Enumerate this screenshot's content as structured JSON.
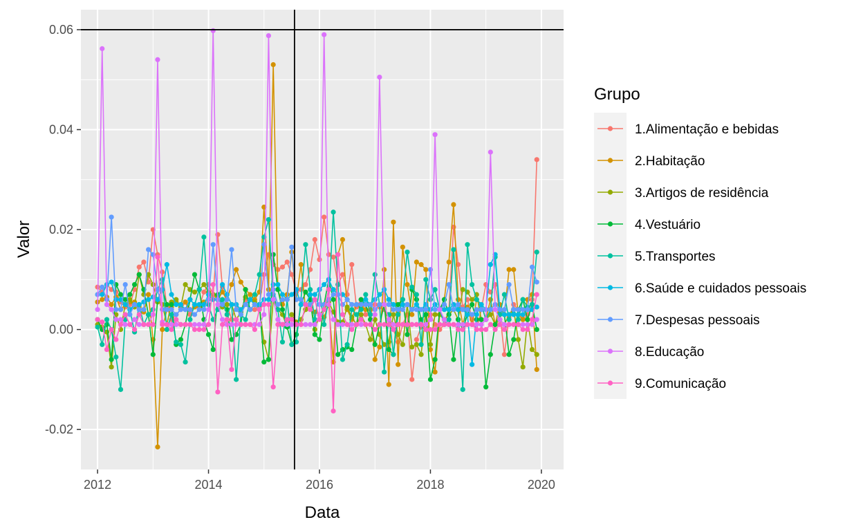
{
  "chart_data": {
    "type": "line",
    "xlabel": "Data",
    "ylabel": "Valor",
    "xlim": [
      2011.7,
      2020.4
    ],
    "ylim": [
      -0.028,
      0.064
    ],
    "x_ticks": [
      2012,
      2014,
      2016,
      2018,
      2020
    ],
    "x_tick_labels": [
      "2012",
      "2014",
      "2016",
      "2018",
      "2020"
    ],
    "y_ticks": [
      -0.02,
      0.0,
      0.02,
      0.04,
      0.06
    ],
    "y_tick_labels": [
      "-0.02",
      "0.00",
      "0.02",
      "0.04",
      "0.06"
    ],
    "grid": true,
    "reference_lines": {
      "hline_y": 0.06,
      "vline_x": 2015.55
    },
    "legend": {
      "title": "Grupo",
      "position": "right"
    },
    "x": [
      2012.0,
      2012.083,
      2012.167,
      2012.25,
      2012.333,
      2012.417,
      2012.5,
      2012.583,
      2012.667,
      2012.75,
      2012.833,
      2012.917,
      2013.0,
      2013.083,
      2013.167,
      2013.25,
      2013.333,
      2013.417,
      2013.5,
      2013.583,
      2013.667,
      2013.75,
      2013.833,
      2013.917,
      2014.0,
      2014.083,
      2014.167,
      2014.25,
      2014.333,
      2014.417,
      2014.5,
      2014.583,
      2014.667,
      2014.75,
      2014.833,
      2014.917,
      2015.0,
      2015.083,
      2015.167,
      2015.25,
      2015.333,
      2015.417,
      2015.5,
      2015.583,
      2015.667,
      2015.75,
      2015.833,
      2015.917,
      2016.0,
      2016.083,
      2016.167,
      2016.25,
      2016.333,
      2016.417,
      2016.5,
      2016.583,
      2016.667,
      2016.75,
      2016.833,
      2016.917,
      2017.0,
      2017.083,
      2017.167,
      2017.25,
      2017.333,
      2017.417,
      2017.5,
      2017.583,
      2017.667,
      2017.75,
      2017.833,
      2017.917,
      2018.0,
      2018.083,
      2018.167,
      2018.25,
      2018.333,
      2018.417,
      2018.5,
      2018.583,
      2018.667,
      2018.75,
      2018.833,
      2018.917,
      2019.0,
      2019.083,
      2019.167,
      2019.25,
      2019.333,
      2019.417,
      2019.5,
      2019.583,
      2019.667,
      2019.75,
      2019.833,
      2019.917
    ],
    "series": [
      {
        "name": "1.Alimentação e bebidas",
        "color": "#F8766D",
        "values": [
          0.0085,
          0.0075,
          0.009,
          0.008,
          0.0075,
          0.0055,
          0.0045,
          0.005,
          0.008,
          0.0125,
          0.0135,
          0.0095,
          0.02,
          0.015,
          0.0115,
          0.0045,
          0.002,
          0.003,
          0.004,
          0.0055,
          0.003,
          0.005,
          0.0045,
          0.0075,
          0.009,
          0.007,
          0.019,
          0.0085,
          0.005,
          0.002,
          0.005,
          0.003,
          0.006,
          0.004,
          0.004,
          0.005,
          0.011,
          0.015,
          0.013,
          0.012,
          0.0125,
          0.0135,
          0.011,
          0.0075,
          0.008,
          0.009,
          0.012,
          0.018,
          0.014,
          0.0225,
          0.015,
          0.0145,
          0.009,
          0.011,
          0.007,
          0.013,
          0.0045,
          0.006,
          0.003,
          0.003,
          0.005,
          0.0045,
          0.004,
          0.003,
          0.0,
          -0.0025,
          0.001,
          0.003,
          -0.01,
          -0.002,
          0.0005,
          0.0,
          0.003,
          0.001,
          0.0,
          0.001,
          0.004,
          0.0205,
          0.013,
          0.0045,
          0.006,
          0.002,
          0.0,
          0.004,
          0.009,
          0.0075,
          0.009,
          0.0035,
          -0.005,
          0.0025,
          0.005,
          0.004,
          0.002,
          0.003,
          0.006,
          0.034
        ]
      },
      {
        "name": "2.Habitação",
        "color": "#D39200",
        "values": [
          0.0055,
          0.006,
          0.0065,
          0.005,
          0.0065,
          0.004,
          0.005,
          0.0055,
          0.0055,
          0.0045,
          0.0035,
          0.007,
          -0.002,
          -0.0235,
          0.0,
          0.004,
          0.0045,
          0.0055,
          0.005,
          0.0055,
          0.004,
          0.0045,
          0.0045,
          0.0055,
          0.006,
          0.007,
          0.006,
          0.0075,
          0.006,
          0.009,
          0.012,
          0.0095,
          0.008,
          0.007,
          0.006,
          0.0075,
          0.0245,
          0.008,
          0.053,
          0.008,
          0.005,
          0.007,
          0.0155,
          0.006,
          0.013,
          0.004,
          0.005,
          0.0035,
          0.003,
          0.0025,
          0.005,
          -0.0065,
          0.015,
          0.018,
          0.004,
          0.002,
          0.005,
          0.0045,
          0.004,
          0.004,
          -0.006,
          -0.0035,
          0.012,
          -0.011,
          0.0215,
          -0.007,
          0.0165,
          0.009,
          0.003,
          0.0135,
          0.013,
          0.012,
          -0.004,
          -0.0085,
          0.003,
          0.006,
          0.0135,
          0.025,
          0.006,
          0.001,
          0.0045,
          0.001,
          0.006,
          0.005,
          0.002,
          0.006,
          0.001,
          0.005,
          0.003,
          0.012,
          0.012,
          0.003,
          0.002,
          0.006,
          0.007,
          -0.008
        ]
      },
      {
        "name": "3.Artigos de residência",
        "color": "#93AA00",
        "values": [
          0.001,
          0.0005,
          -0.0005,
          -0.0075,
          0.003,
          0.0,
          0.005,
          0.006,
          0.0045,
          0.011,
          0.007,
          0.011,
          0.009,
          0.0055,
          0.005,
          0.001,
          0.0055,
          0.006,
          0.0045,
          0.009,
          0.008,
          0.0075,
          0.008,
          0.009,
          0.0075,
          0.007,
          0.0065,
          0.0045,
          0.005,
          0.005,
          0.002,
          0.0035,
          0.0065,
          0.006,
          0.0055,
          0.0045,
          -0.0025,
          -0.006,
          0.006,
          0.004,
          0.003,
          0.0005,
          0.003,
          0.0015,
          0.002,
          0.004,
          0.006,
          0.0,
          0.003,
          0.004,
          0.0055,
          0.0035,
          0.0015,
          0.0015,
          0.0045,
          0.0025,
          0.001,
          0.003,
          0.001,
          -0.002,
          0.002,
          -0.001,
          -0.003,
          -0.0025,
          0.003,
          -0.001,
          -0.003,
          0.005,
          -0.0035,
          -0.003,
          -0.005,
          0.004,
          -0.003,
          0.003,
          0.003,
          0.002,
          0.003,
          0.004,
          0.002,
          0.008,
          0.0075,
          0.006,
          0.007,
          0.002,
          0.002,
          0.003,
          0.001,
          0.002,
          0.001,
          0.003,
          0.004,
          -0.002,
          -0.0075,
          0.002,
          -0.004,
          -0.005
        ]
      },
      {
        "name": "4.Vestuário",
        "color": "#00BA38",
        "values": [
          0.002,
          0.0,
          0.001,
          -0.006,
          0.009,
          0.007,
          0.006,
          0.007,
          0.009,
          0.011,
          0.008,
          0.003,
          -0.005,
          0.006,
          0.008,
          0.005,
          0.005,
          -0.003,
          -0.002,
          0.001,
          0.006,
          0.011,
          0.008,
          0.002,
          -0.001,
          -0.004,
          0.007,
          0.005,
          0.004,
          -0.002,
          -0.001,
          0.001,
          0.008,
          0.004,
          0.005,
          0.005,
          -0.0065,
          -0.006,
          0.015,
          0.008,
          0.004,
          0.0005,
          -0.003,
          -0.001,
          0.005,
          0.0075,
          0.006,
          -0.001,
          -0.002,
          0.005,
          0.01,
          0.006,
          -0.005,
          -0.004,
          -0.0035,
          -0.004,
          0.001,
          0.006,
          0.005,
          0.002,
          -0.003,
          0.001,
          0.005,
          -0.004,
          -0.005,
          0.005,
          0.006,
          -0.001,
          0.008,
          0.006,
          0.002,
          0.003,
          -0.01,
          -0.006,
          0.004,
          0.006,
          0.003,
          -0.006,
          0.002,
          0.0,
          0.003,
          0.005,
          0.002,
          0.002,
          -0.0115,
          -0.005,
          0.001,
          0.003,
          0.003,
          -0.005,
          -0.002,
          0.004,
          0.006,
          0.002,
          0.005,
          0.0
        ]
      },
      {
        "name": "5.Transportes",
        "color": "#00C19F",
        "values": [
          0.0005,
          -0.003,
          0.002,
          0.0,
          -0.0055,
          -0.012,
          0.002,
          0.004,
          -0.0005,
          0.005,
          0.001,
          0.003,
          0.004,
          0.008,
          0.01,
          0.0,
          0.003,
          -0.0025,
          -0.003,
          -0.0065,
          0.002,
          0.005,
          0.008,
          0.0185,
          0.005,
          0.002,
          0.004,
          0.006,
          0.003,
          0.005,
          -0.01,
          0.003,
          0.002,
          0.006,
          0.007,
          0.011,
          0.0185,
          0.022,
          0.007,
          0.004,
          -0.0025,
          0.006,
          -0.003,
          -0.0025,
          0.006,
          0.017,
          0.008,
          0.002,
          0.008,
          0.001,
          0.006,
          0.0235,
          0.009,
          -0.006,
          -0.003,
          0.004,
          0.003,
          0.004,
          0.007,
          0.003,
          0.011,
          0.005,
          -0.0085,
          0.003,
          -0.005,
          0.003,
          0.006,
          0.0155,
          0.0085,
          0.007,
          -0.003,
          0.01,
          0.006,
          0.008,
          0.004,
          0.001,
          0.002,
          0.016,
          0.004,
          -0.012,
          0.017,
          0.009,
          0.006,
          0.005,
          0.002,
          0.004,
          0.0145,
          0.003,
          0.007,
          0.002,
          0.004,
          0.002,
          0.006,
          0.0045,
          0.005,
          0.0155
        ]
      },
      {
        "name": "6.Saúde e cuidados pessoais",
        "color": "#00B9E3",
        "values": [
          0.007,
          0.007,
          0.009,
          0.0095,
          0.006,
          0.006,
          0.005,
          0.004,
          0.005,
          0.005,
          0.0055,
          0.006,
          0.0065,
          0.006,
          0.008,
          0.013,
          0.007,
          0.005,
          0.005,
          0.004,
          0.006,
          0.005,
          0.005,
          0.005,
          0.007,
          0.006,
          0.006,
          0.009,
          0.007,
          0.005,
          0.005,
          0.004,
          0.005,
          0.006,
          0.005,
          0.005,
          0.006,
          0.006,
          0.009,
          0.009,
          0.007,
          0.006,
          0.007,
          0.008,
          0.005,
          0.005,
          0.007,
          0.007,
          0.008,
          0.009,
          0.01,
          0.008,
          0.007,
          0.007,
          0.006,
          0.005,
          0.005,
          0.005,
          0.006,
          0.005,
          0.006,
          0.007,
          0.008,
          0.006,
          0.005,
          0.004,
          0.005,
          0.005,
          0.004,
          0.005,
          0.004,
          0.005,
          0.004,
          0.005,
          0.004,
          0.004,
          0.004,
          0.005,
          0.004,
          0.004,
          0.003,
          -0.007,
          0.003,
          0.005,
          0.004,
          0.013,
          0.015,
          0.004,
          0.003,
          0.003,
          0.003,
          0.003,
          0.003,
          0.004,
          0.004,
          0.0045
        ]
      },
      {
        "name": "7.Despesas pessoais",
        "color": "#619CFF",
        "values": [
          0.007,
          0.0085,
          0.006,
          0.0225,
          0.004,
          0.004,
          0.009,
          0.003,
          0.005,
          0.004,
          0.004,
          0.016,
          0.015,
          0.008,
          0.004,
          0.004,
          0.004,
          0.003,
          0.004,
          0.004,
          0.004,
          0.003,
          0.004,
          0.004,
          0.006,
          0.017,
          0.006,
          0.005,
          0.006,
          0.016,
          0.004,
          0.003,
          0.005,
          0.004,
          0.005,
          0.004,
          0.017,
          0.007,
          0.008,
          0.005,
          0.006,
          0.006,
          0.0165,
          0.006,
          0.006,
          0.005,
          0.005,
          0.006,
          0.005,
          0.005,
          0.006,
          0.007,
          0.007,
          0.005,
          0.006,
          0.005,
          0.005,
          0.005,
          0.005,
          0.005,
          0.004,
          0.005,
          0.005,
          0.005,
          0.004,
          0.004,
          0.004,
          0.005,
          0.004,
          0.004,
          0.004,
          0.004,
          0.012,
          0.004,
          0.004,
          0.005,
          0.009,
          0.004,
          0.005,
          0.004,
          0.004,
          0.003,
          0.004,
          0.004,
          0.004,
          0.004,
          0.005,
          0.004,
          0.004,
          0.009,
          0.004,
          0.004,
          0.004,
          0.004,
          0.0125,
          0.0095
        ]
      },
      {
        "name": "8.Educação",
        "color": "#DB72FB",
        "values": [
          0.004,
          0.0562,
          0.005,
          0.004,
          0.002,
          0.002,
          0.001,
          0.001,
          0.002,
          0.001,
          0.001,
          0.001,
          0.003,
          0.054,
          0.0015,
          0.001,
          0.001,
          0.001,
          0.001,
          0.001,
          0.001,
          0.001,
          0.001,
          0.001,
          0.004,
          0.0598,
          0.005,
          0.002,
          0.001,
          0.001,
          0.001,
          0.001,
          0.001,
          0.001,
          0.001,
          0.001,
          0.003,
          0.0588,
          0.006,
          0.002,
          0.001,
          0.001,
          0.001,
          0.001,
          0.001,
          0.001,
          0.001,
          0.001,
          0.003,
          0.059,
          0.005,
          0.002,
          0.001,
          0.001,
          0.001,
          0.001,
          0.001,
          0.001,
          0.001,
          0.001,
          0.003,
          0.0505,
          0.005,
          0.002,
          0.001,
          0.001,
          0.001,
          0.001,
          0.001,
          0.001,
          0.001,
          0.001,
          0.002,
          0.039,
          0.004,
          0.002,
          0.001,
          0.001,
          0.001,
          0.001,
          0.001,
          0.001,
          0.001,
          0.001,
          0.002,
          0.0355,
          0.004,
          0.002,
          0.001,
          0.001,
          0.001,
          0.001,
          0.001,
          0.001,
          0.001,
          0.002
        ]
      },
      {
        "name": "9.Comunicação",
        "color": "#FF61C3",
        "values": [
          0.002,
          0.0015,
          -0.004,
          0.0,
          -0.002,
          0.001,
          0.003,
          0.001,
          0.0,
          0.003,
          0.001,
          0.001,
          0.001,
          0.0145,
          0.001,
          0.001,
          0.0,
          0.002,
          0.001,
          0.001,
          0.001,
          0.0,
          0.0,
          0.0,
          0.001,
          0.009,
          -0.0125,
          0.001,
          0.002,
          -0.008,
          0.002,
          0.001,
          0.001,
          0.001,
          0.0,
          0.004,
          0.005,
          0.005,
          -0.0115,
          0.001,
          0.001,
          0.002,
          0.002,
          0.001,
          0.001,
          0.005,
          0.004,
          0.006,
          0.002,
          0.004,
          0.008,
          -0.0163,
          0.015,
          0.003,
          0.001,
          0.0,
          0.001,
          0.002,
          0.001,
          0.001,
          0.0,
          0.001,
          0.001,
          0.001,
          0.0,
          0.001,
          0.001,
          0.001,
          0.001,
          0.001,
          0.001,
          0.0,
          0.0,
          0.0,
          0.001,
          0.001,
          0.001,
          0.001,
          0.0,
          0.0,
          0.001,
          0.001,
          0.0,
          0.0,
          0.0,
          0.001,
          0.0,
          0.001,
          0.0,
          0.001,
          0.001,
          0.001,
          0.0,
          0.0,
          0.002,
          0.007
        ]
      }
    ]
  }
}
